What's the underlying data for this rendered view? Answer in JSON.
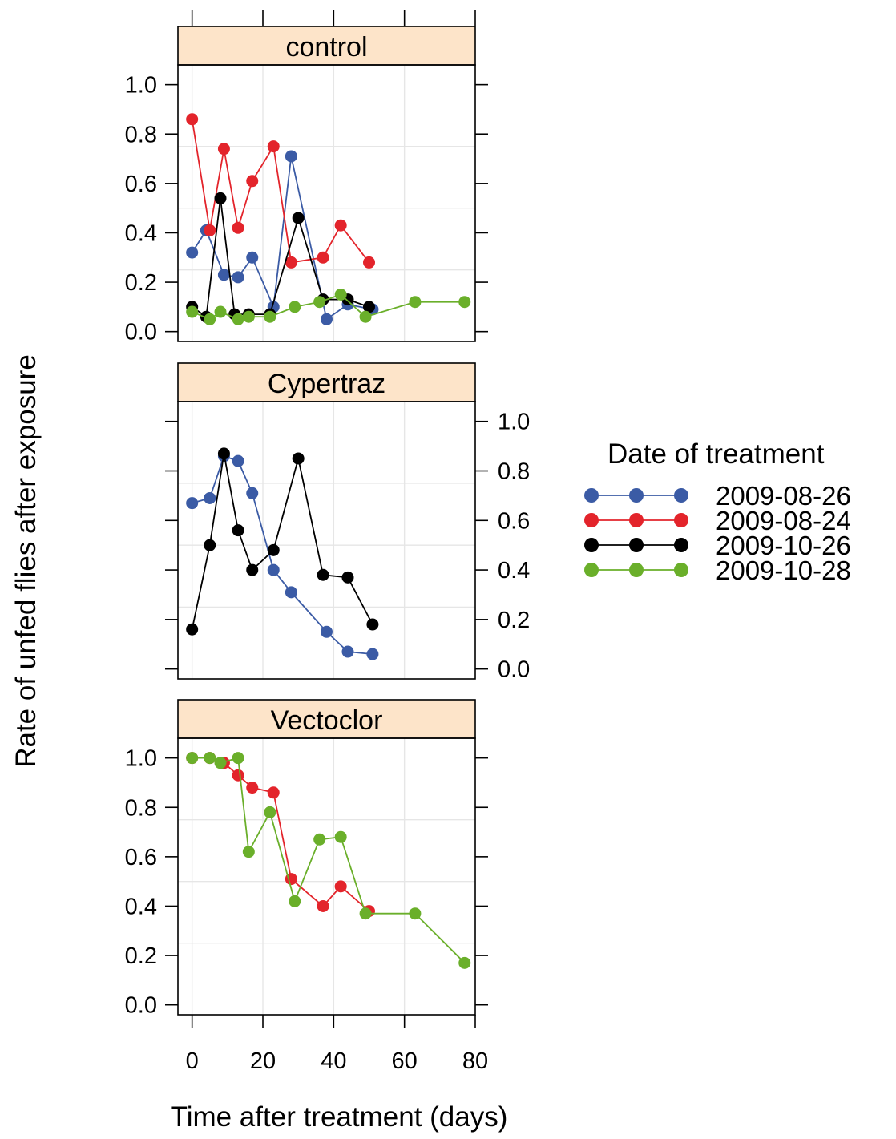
{
  "chart_data": {
    "type": "line",
    "xlabel": "Time after treatment (days)",
    "ylabel": "Rate of unfed flies after exposure",
    "xlim": [
      -4,
      80
    ],
    "ylim": [
      -0.04,
      1.08
    ],
    "x_ticks": [
      "0",
      "20",
      "40",
      "60",
      "80"
    ],
    "y_ticks": [
      "0.0",
      "0.2",
      "0.4",
      "0.6",
      "0.8",
      "1.0"
    ],
    "grid": true,
    "legend": {
      "title": "Date of treatment",
      "position": "right",
      "entries": [
        {
          "label": "2009-08-26",
          "color": "#3b5ba5"
        },
        {
          "label": "2009-08-24",
          "color": "#e3242b"
        },
        {
          "label": "2009-10-26",
          "color": "#000000"
        },
        {
          "label": "2009-10-28",
          "color": "#6aaf2a"
        }
      ]
    },
    "panels": [
      {
        "name": "control",
        "y_axis_side": "left",
        "series": [
          {
            "name": "2009-08-26",
            "color": "#3b5ba5",
            "x": [
              0,
              4,
              9,
              13,
              17,
              23,
              28,
              38,
              44,
              51
            ],
            "y": [
              0.32,
              0.41,
              0.23,
              0.22,
              0.3,
              0.1,
              0.71,
              0.05,
              0.11,
              0.09
            ]
          },
          {
            "name": "2009-08-24",
            "color": "#e3242b",
            "x": [
              0,
              5,
              9,
              13,
              17,
              23,
              28,
              37,
              42,
              50
            ],
            "y": [
              0.86,
              0.41,
              0.74,
              0.42,
              0.61,
              0.75,
              0.28,
              0.3,
              0.43,
              0.28
            ]
          },
          {
            "name": "2009-10-26",
            "color": "#000000",
            "x": [
              0,
              4,
              8,
              12,
              16,
              22,
              30,
              37,
              44,
              50
            ],
            "y": [
              0.1,
              0.06,
              0.54,
              0.07,
              0.07,
              0.07,
              0.46,
              0.13,
              0.13,
              0.1
            ]
          },
          {
            "name": "2009-10-28",
            "color": "#6aaf2a",
            "x": [
              0,
              5,
              8,
              13,
              16,
              22,
              29,
              36,
              42,
              49,
              63,
              77
            ],
            "y": [
              0.08,
              0.05,
              0.08,
              0.05,
              0.06,
              0.06,
              0.1,
              0.12,
              0.15,
              0.06,
              0.12,
              0.12
            ]
          }
        ]
      },
      {
        "name": "Cypertraz",
        "y_axis_side": "right",
        "series": [
          {
            "name": "2009-08-26",
            "color": "#3b5ba5",
            "x": [
              0,
              5,
              9,
              13,
              17,
              23,
              28,
              38,
              44,
              51
            ],
            "y": [
              0.67,
              0.69,
              0.86,
              0.84,
              0.71,
              0.4,
              0.31,
              0.15,
              0.07,
              0.06
            ]
          },
          {
            "name": "2009-10-26",
            "color": "#000000",
            "x": [
              0,
              5,
              9,
              13,
              17,
              23,
              30,
              37,
              44,
              51
            ],
            "y": [
              0.16,
              0.5,
              0.87,
              0.56,
              0.4,
              0.48,
              0.85,
              0.38,
              0.37,
              0.18
            ]
          }
        ]
      },
      {
        "name": "Vectoclor",
        "y_axis_side": "left",
        "series": [
          {
            "name": "2009-08-24",
            "color": "#e3242b",
            "x": [
              0,
              5,
              9,
              13,
              17,
              23,
              28,
              37,
              42,
              50
            ],
            "y": [
              1.0,
              1.0,
              0.98,
              0.93,
              0.88,
              0.86,
              0.51,
              0.4,
              0.48,
              0.38
            ]
          },
          {
            "name": "2009-10-28",
            "color": "#6aaf2a",
            "x": [
              0,
              5,
              8,
              13,
              16,
              22,
              29,
              36,
              42,
              49,
              63,
              77
            ],
            "y": [
              1.0,
              1.0,
              0.98,
              1.0,
              0.62,
              0.78,
              0.42,
              0.67,
              0.68,
              0.37,
              0.37,
              0.17
            ]
          }
        ]
      }
    ]
  }
}
